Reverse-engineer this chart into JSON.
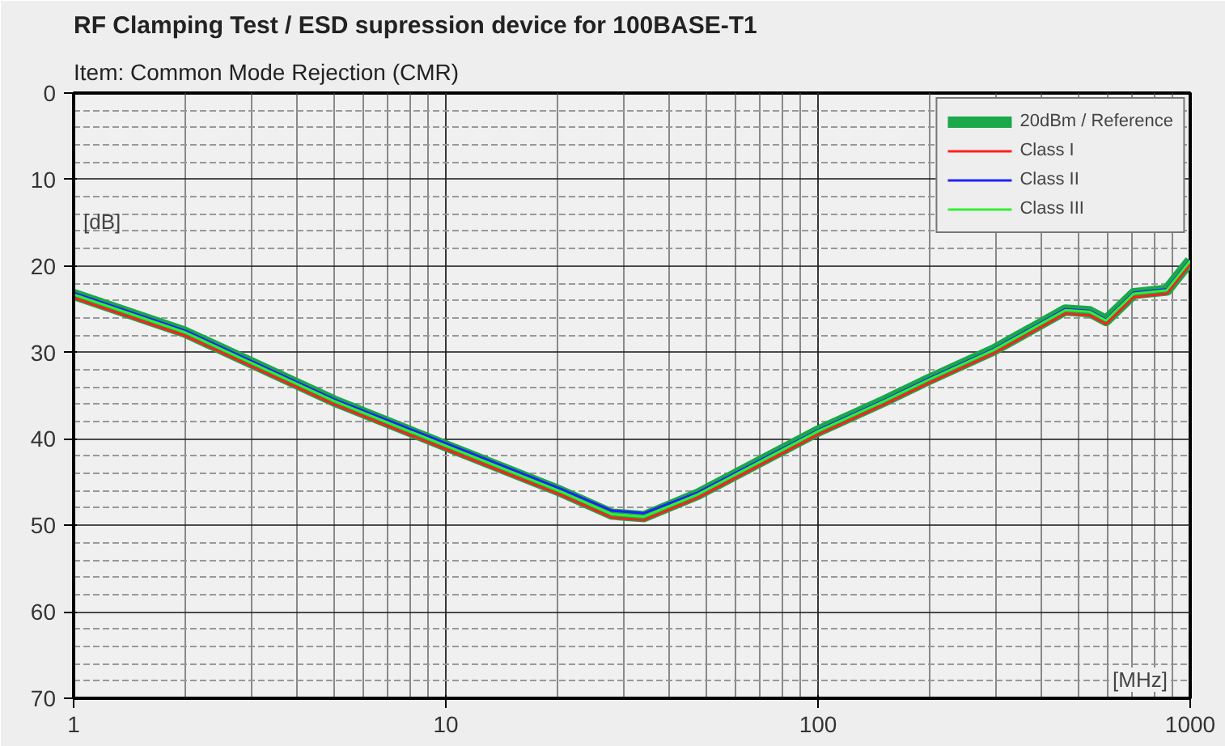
{
  "chart_data": {
    "type": "line",
    "title": "RF Clamping Test / ESD supression device for 100BASE-T1",
    "subtitle": "Item:     Common Mode Rejection (CMR)",
    "xlabel": "[MHz]",
    "ylabel": "[dB]",
    "x": [
      1,
      2,
      5,
      10,
      20.4,
      27.9,
      34,
      47.6,
      100,
      151,
      197,
      297,
      462,
      537,
      594,
      705,
      865,
      1000
    ],
    "series": [
      {
        "name": "20dBm / Reference",
        "color": "#1aa84a",
        "values": [
          23.3,
          27.7,
          35.6,
          40.8,
          46.1,
          48.7,
          49,
          46.4,
          39.1,
          35.6,
          33.2,
          29.7,
          25.1,
          25.3,
          26.3,
          23.2,
          22.8,
          19.4
        ]
      },
      {
        "name": "Class I",
        "color": "#ff2020",
        "values": [
          23.7,
          28.1,
          36,
          41.2,
          46.5,
          49.1,
          49.4,
          46.8,
          39.5,
          36,
          33.6,
          30.1,
          25.5,
          25.7,
          26.7,
          23.6,
          23.2,
          19.8
        ]
      },
      {
        "name": "Class II",
        "color": "#2020ff",
        "values": [
          23.1,
          27.5,
          35.4,
          40.5,
          45.8,
          48.3,
          48.6,
          46.2,
          39,
          35.5,
          33.1,
          29.6,
          25,
          25.2,
          26.2,
          23.1,
          22.7,
          19.3
        ]
      },
      {
        "name": "Class III",
        "color": "#33ee33",
        "values": [
          23.3,
          27.7,
          35.6,
          40.8,
          46.1,
          48.7,
          49,
          46.4,
          39.1,
          35.6,
          33.2,
          29.7,
          25.1,
          25.3,
          26.3,
          23.2,
          22.8,
          19.4
        ]
      }
    ],
    "log": "x",
    "xlim": [
      1,
      1000
    ],
    "xticks": [
      1,
      10,
      100,
      1000
    ],
    "ylim": [
      70,
      0
    ],
    "yticks": [
      0,
      10,
      20,
      30,
      40,
      50,
      60,
      70
    ],
    "grid": true,
    "legend": "top right"
  }
}
